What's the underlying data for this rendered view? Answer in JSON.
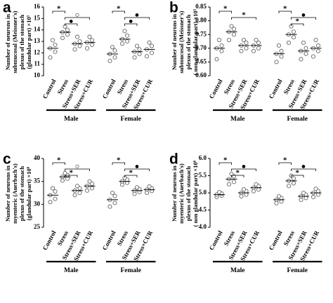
{
  "chart_data": [
    {
      "type": "dotplot",
      "panel": "a",
      "ylabel": [
        "Number of neurons in",
        "submucosal (Meissner's)",
        "plexus of the  stomach",
        "(glandular part) ×10⁵"
      ],
      "ylim": [
        10,
        16
      ],
      "yticks": [
        10,
        11,
        12,
        13,
        14,
        15,
        16
      ],
      "categories": [
        "Control",
        "Stress",
        "Stress+SER",
        "Stress+CUR",
        "Control",
        "Stress",
        "Stress+SER",
        "Stress+CUR"
      ],
      "groups": [
        "Male",
        "Female"
      ],
      "values": [
        [
          11.6,
          12.1,
          12.4,
          12.7,
          13.1
        ],
        [
          13.3,
          13.6,
          13.8,
          14.0,
          14.3
        ],
        [
          12.3,
          12.6,
          12.8,
          13.0,
          13.4
        ],
        [
          12.4,
          12.7,
          12.9,
          13.1,
          13.4
        ],
        [
          11.3,
          11.6,
          11.9,
          12.2,
          12.5
        ],
        [
          12.8,
          13.0,
          13.2,
          13.5,
          13.9
        ],
        [
          11.6,
          11.9,
          12.1,
          12.3,
          12.6
        ],
        [
          11.7,
          12.0,
          12.3,
          12.6,
          12.9
        ]
      ],
      "means": [
        12.4,
        13.8,
        12.8,
        12.9,
        11.9,
        13.2,
        12.1,
        12.3
      ],
      "annotations": [
        {
          "text": "*",
          "group": 0,
          "from": 0,
          "to": 1
        },
        {
          "text": "○",
          "group": 0,
          "from": 1,
          "to": 3
        },
        {
          "text": "●",
          "group": 0,
          "from": 1,
          "to": 2
        },
        {
          "text": "*",
          "group": 1,
          "from": 0,
          "to": 1
        },
        {
          "text": "●",
          "group": 1,
          "from": 1,
          "to": 3
        },
        {
          "text": "●",
          "group": 1,
          "from": 1,
          "to": 2
        }
      ]
    },
    {
      "type": "dotplot",
      "panel": "b",
      "ylabel": [
        "Number of neurons in",
        "submucosal (Meissner's)",
        "plexus of the  stomach",
        "( non glandular part) ×10⁵"
      ],
      "ylim": [
        0.6,
        0.85
      ],
      "yticks": [
        {
          "value": 0.6,
          "label": "0.60"
        },
        0.65,
        {
          "value": 0.7,
          "label": "0.70"
        },
        0.75,
        {
          "value": 0.8,
          "label": "0.80"
        },
        0.85
      ],
      "categories": [
        "Control",
        "Stress",
        "Stress+SER",
        "Stress+CUR",
        "Control",
        "Stress",
        "Stress+SER",
        "Stress+CUR"
      ],
      "groups": [
        "Male",
        "Female"
      ],
      "values": [
        [
          0.66,
          0.69,
          0.7,
          0.71,
          0.73
        ],
        [
          0.73,
          0.75,
          0.76,
          0.77,
          0.78
        ],
        [
          0.69,
          0.7,
          0.71,
          0.72,
          0.73
        ],
        [
          0.69,
          0.7,
          0.71,
          0.72,
          0.73
        ],
        [
          0.65,
          0.67,
          0.68,
          0.69,
          0.71
        ],
        [
          0.72,
          0.74,
          0.75,
          0.76,
          0.78
        ],
        [
          0.66,
          0.68,
          0.69,
          0.7,
          0.72
        ],
        [
          0.67,
          0.69,
          0.7,
          0.71,
          0.73
        ]
      ],
      "means": [
        0.7,
        0.76,
        0.71,
        0.71,
        0.68,
        0.75,
        0.69,
        0.7
      ],
      "annotations": [
        {
          "text": "*",
          "group": 0,
          "from": 0,
          "to": 1
        },
        {
          "text": "*",
          "group": 0,
          "from": 1,
          "to": 3
        },
        {
          "text": "*",
          "group": 1,
          "from": 0,
          "to": 1
        },
        {
          "text": "●",
          "group": 1,
          "from": 1,
          "to": 3
        },
        {
          "text": "*",
          "group": 1,
          "from": 1,
          "to": 2
        }
      ]
    },
    {
      "type": "dotplot",
      "panel": "c",
      "ylabel": [
        "Number of neurons in",
        "myenteric (Auerbach's)",
        "plexus of the stomach",
        "(glandular part) ×10⁶"
      ],
      "ylim": [
        25,
        40
      ],
      "yticks": [
        25,
        30,
        35,
        40
      ],
      "categories": [
        "Control",
        "Stress",
        "Stress+SER",
        "Stress+CUR",
        "Control",
        "Stress",
        "Stress+SER",
        "Stress+CUR"
      ],
      "groups": [
        "Male",
        "Female"
      ],
      "values": [
        [
          30.5,
          31.2,
          32,
          32.8,
          33.5
        ],
        [
          35.2,
          35.6,
          36,
          36.4,
          36.8
        ],
        [
          32,
          32.5,
          33,
          33.5,
          34
        ],
        [
          33,
          33.5,
          34,
          34.5,
          35
        ],
        [
          29.5,
          30.3,
          31,
          31.8,
          32.5
        ],
        [
          34.3,
          34.7,
          35,
          35.4,
          35.8
        ],
        [
          32.3,
          32.7,
          33,
          33.3,
          33.7
        ],
        [
          32.5,
          32.9,
          33.2,
          33.5,
          33.9
        ]
      ],
      "means": [
        32,
        36,
        33,
        34,
        31,
        35,
        33,
        33.2
      ],
      "annotations": [
        {
          "text": "*",
          "group": 0,
          "from": 0,
          "to": 1
        },
        {
          "text": "○",
          "group": 0,
          "from": 1,
          "to": 3
        },
        {
          "text": "*",
          "group": 0,
          "from": 1,
          "to": 2
        },
        {
          "text": "*",
          "group": 1,
          "from": 0,
          "to": 1
        },
        {
          "text": "●",
          "group": 1,
          "from": 1,
          "to": 3
        },
        {
          "text": "*",
          "group": 1,
          "from": 1,
          "to": 2
        }
      ]
    },
    {
      "type": "dotplot",
      "panel": "d",
      "ylabel": [
        "Number of neurons in",
        "myenteric (Auerbach's)",
        "plexus of the stomach",
        "( non glandular part) ×10⁶"
      ],
      "ylim": [
        4,
        6
      ],
      "yticks": [
        {
          "value": 4,
          "label": "4.0"
        },
        4.5,
        {
          "value": 5,
          "label": "5.0"
        },
        5.5,
        {
          "value": 6,
          "label": "6.0"
        }
      ],
      "categories": [
        "Control",
        "Stress",
        "Stress+SER",
        "Stress+CUR",
        "Control",
        "Stress",
        "Stress+SER",
        "Stress+CUR"
      ],
      "groups": [
        "Male",
        "Female"
      ],
      "values": [
        [
          4.88,
          4.92,
          4.95,
          4.98,
          5.02
        ],
        [
          5.25,
          5.32,
          5.4,
          5.48,
          5.55
        ],
        [
          4.9,
          4.95,
          5.0,
          5.05,
          5.1
        ],
        [
          5.05,
          5.1,
          5.15,
          5.2,
          5.25
        ],
        [
          4.7,
          4.75,
          4.8,
          4.85,
          4.9
        ],
        [
          5.2,
          5.28,
          5.35,
          5.42,
          5.5
        ],
        [
          4.8,
          4.85,
          4.9,
          4.95,
          5.0
        ],
        [
          4.88,
          4.95,
          5.0,
          5.05,
          5.12
        ]
      ],
      "means": [
        4.95,
        5.4,
        5.0,
        5.15,
        4.8,
        5.35,
        4.9,
        5.0
      ],
      "annotations": [
        {
          "text": "*",
          "group": 0,
          "from": 0,
          "to": 1
        },
        {
          "text": "●",
          "group": 0,
          "from": 1,
          "to": 3
        },
        {
          "text": "*",
          "group": 0,
          "from": 1,
          "to": 2
        },
        {
          "text": "*",
          "group": 1,
          "from": 0,
          "to": 1
        },
        {
          "text": "●",
          "group": 1,
          "from": 1,
          "to": 3
        },
        {
          "text": "*",
          "group": 1,
          "from": 1,
          "to": 2
        }
      ]
    }
  ]
}
